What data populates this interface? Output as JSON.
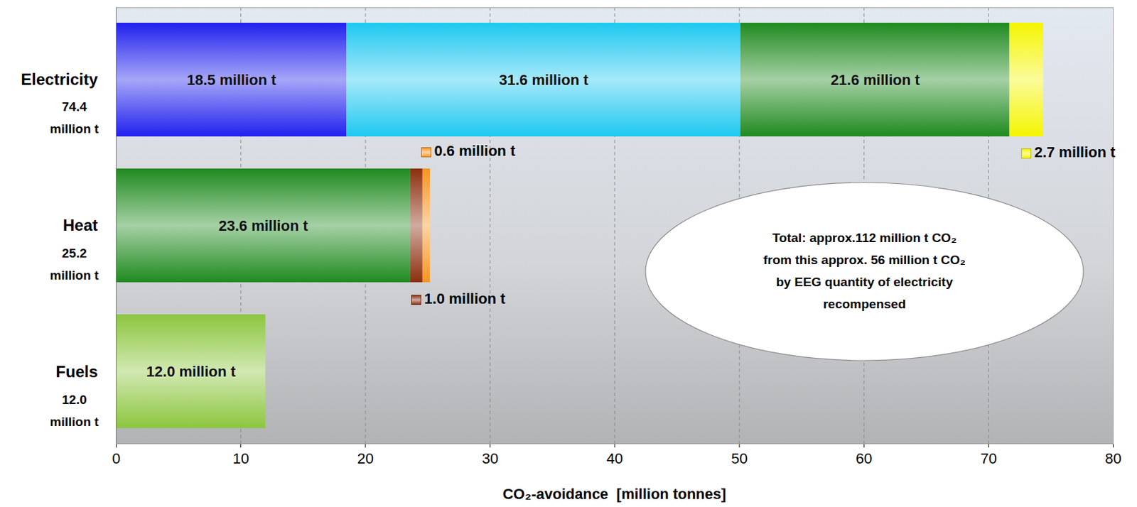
{
  "chart_data": {
    "type": "bar",
    "orientation": "horizontal",
    "stacked": true,
    "data_labels": true,
    "grid": true,
    "categories": [
      "Electricity",
      "Heat",
      "Fuels"
    ],
    "category_totals": [
      74.4,
      25.2,
      12.0
    ],
    "category_total_labels": [
      "74.4 million t",
      "25.2 million t",
      "12.0 million t"
    ],
    "series": [
      {
        "color": "#2020ee",
        "values": [
          18.5,
          null,
          null
        ],
        "value_labels": [
          "18.5 million t",
          null,
          null
        ]
      },
      {
        "color": "#1ec8f0",
        "values": [
          31.6,
          null,
          null
        ],
        "value_labels": [
          "31.6 million t",
          null,
          null
        ]
      },
      {
        "color": "#1f8a1f",
        "values": [
          21.6,
          23.6,
          null
        ],
        "value_labels": [
          "21.6 million t",
          "23.6 million t",
          null
        ]
      },
      {
        "color": "#f5f500",
        "values": [
          2.7,
          null,
          null
        ],
        "value_labels": [
          "2.7 million t",
          null,
          null
        ]
      },
      {
        "color": "#8b2e0e",
        "values": [
          null,
          1.0,
          null
        ],
        "value_labels": [
          null,
          "1.0 million t",
          null
        ]
      },
      {
        "color": "#f7941d",
        "values": [
          null,
          0.6,
          null
        ],
        "value_labels": [
          null,
          "0.6 million t",
          null
        ]
      },
      {
        "color": "#8cc63f",
        "values": [
          null,
          null,
          12.0
        ],
        "value_labels": [
          null,
          null,
          "12.0 million t"
        ]
      }
    ],
    "xlim": [
      0,
      80
    ],
    "xticks": [
      0,
      10,
      20,
      30,
      40,
      50,
      60,
      70,
      80
    ],
    "xlabel": "CO₂-avoidance  [million tonnes]",
    "annotation": [
      "Total: approx.112 million t CO₂",
      "from this approx. 56 million t CO₂",
      "by EEG quantity of electricity",
      "recompensed"
    ]
  }
}
